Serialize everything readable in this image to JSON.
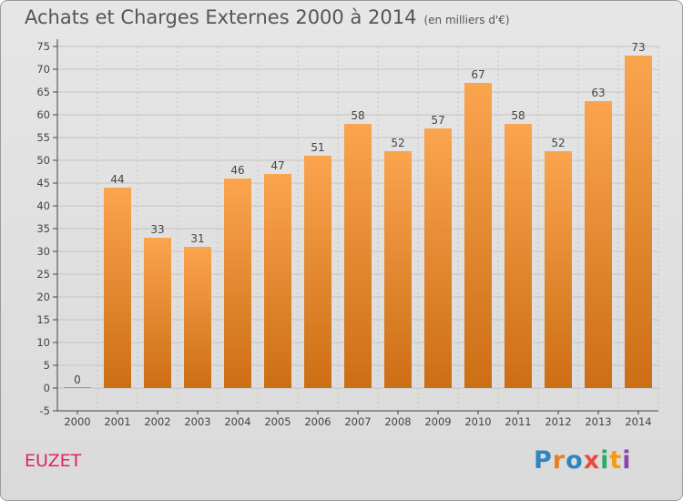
{
  "header": {
    "title": "Achats et Charges Externes 2000 à 2014",
    "subtitle": "(en milliers d'€)"
  },
  "footer": {
    "commune": "EUZET",
    "logo_letters": [
      "P",
      "r",
      "o",
      "x",
      "i",
      "t",
      "i"
    ],
    "logo_colors": [
      "#2e86c1",
      "#e67e22",
      "#2e86c1",
      "#e74c3c",
      "#27ae60",
      "#f39c12",
      "#8e44ad"
    ]
  },
  "colors": {
    "bar_top": "#fba44e",
    "bar_bottom": "#cc6e14",
    "grid": "#c4c4c4",
    "axis": "#444444"
  },
  "chart_data": {
    "type": "bar",
    "title": "Achats et Charges Externes 2000 à 2014",
    "subtitle": "(en milliers d'€)",
    "categories": [
      "2000",
      "2001",
      "2002",
      "2003",
      "2004",
      "2005",
      "2006",
      "2007",
      "2008",
      "2009",
      "2010",
      "2011",
      "2012",
      "2013",
      "2014"
    ],
    "values": [
      0,
      44,
      33,
      31,
      46,
      47,
      51,
      58,
      52,
      57,
      67,
      58,
      52,
      63,
      73
    ],
    "ylim": [
      -5,
      75
    ],
    "yticks": [
      -5,
      0,
      5,
      10,
      15,
      20,
      25,
      30,
      35,
      40,
      45,
      50,
      55,
      60,
      65,
      70,
      75
    ],
    "grid": true,
    "legend": "none"
  }
}
